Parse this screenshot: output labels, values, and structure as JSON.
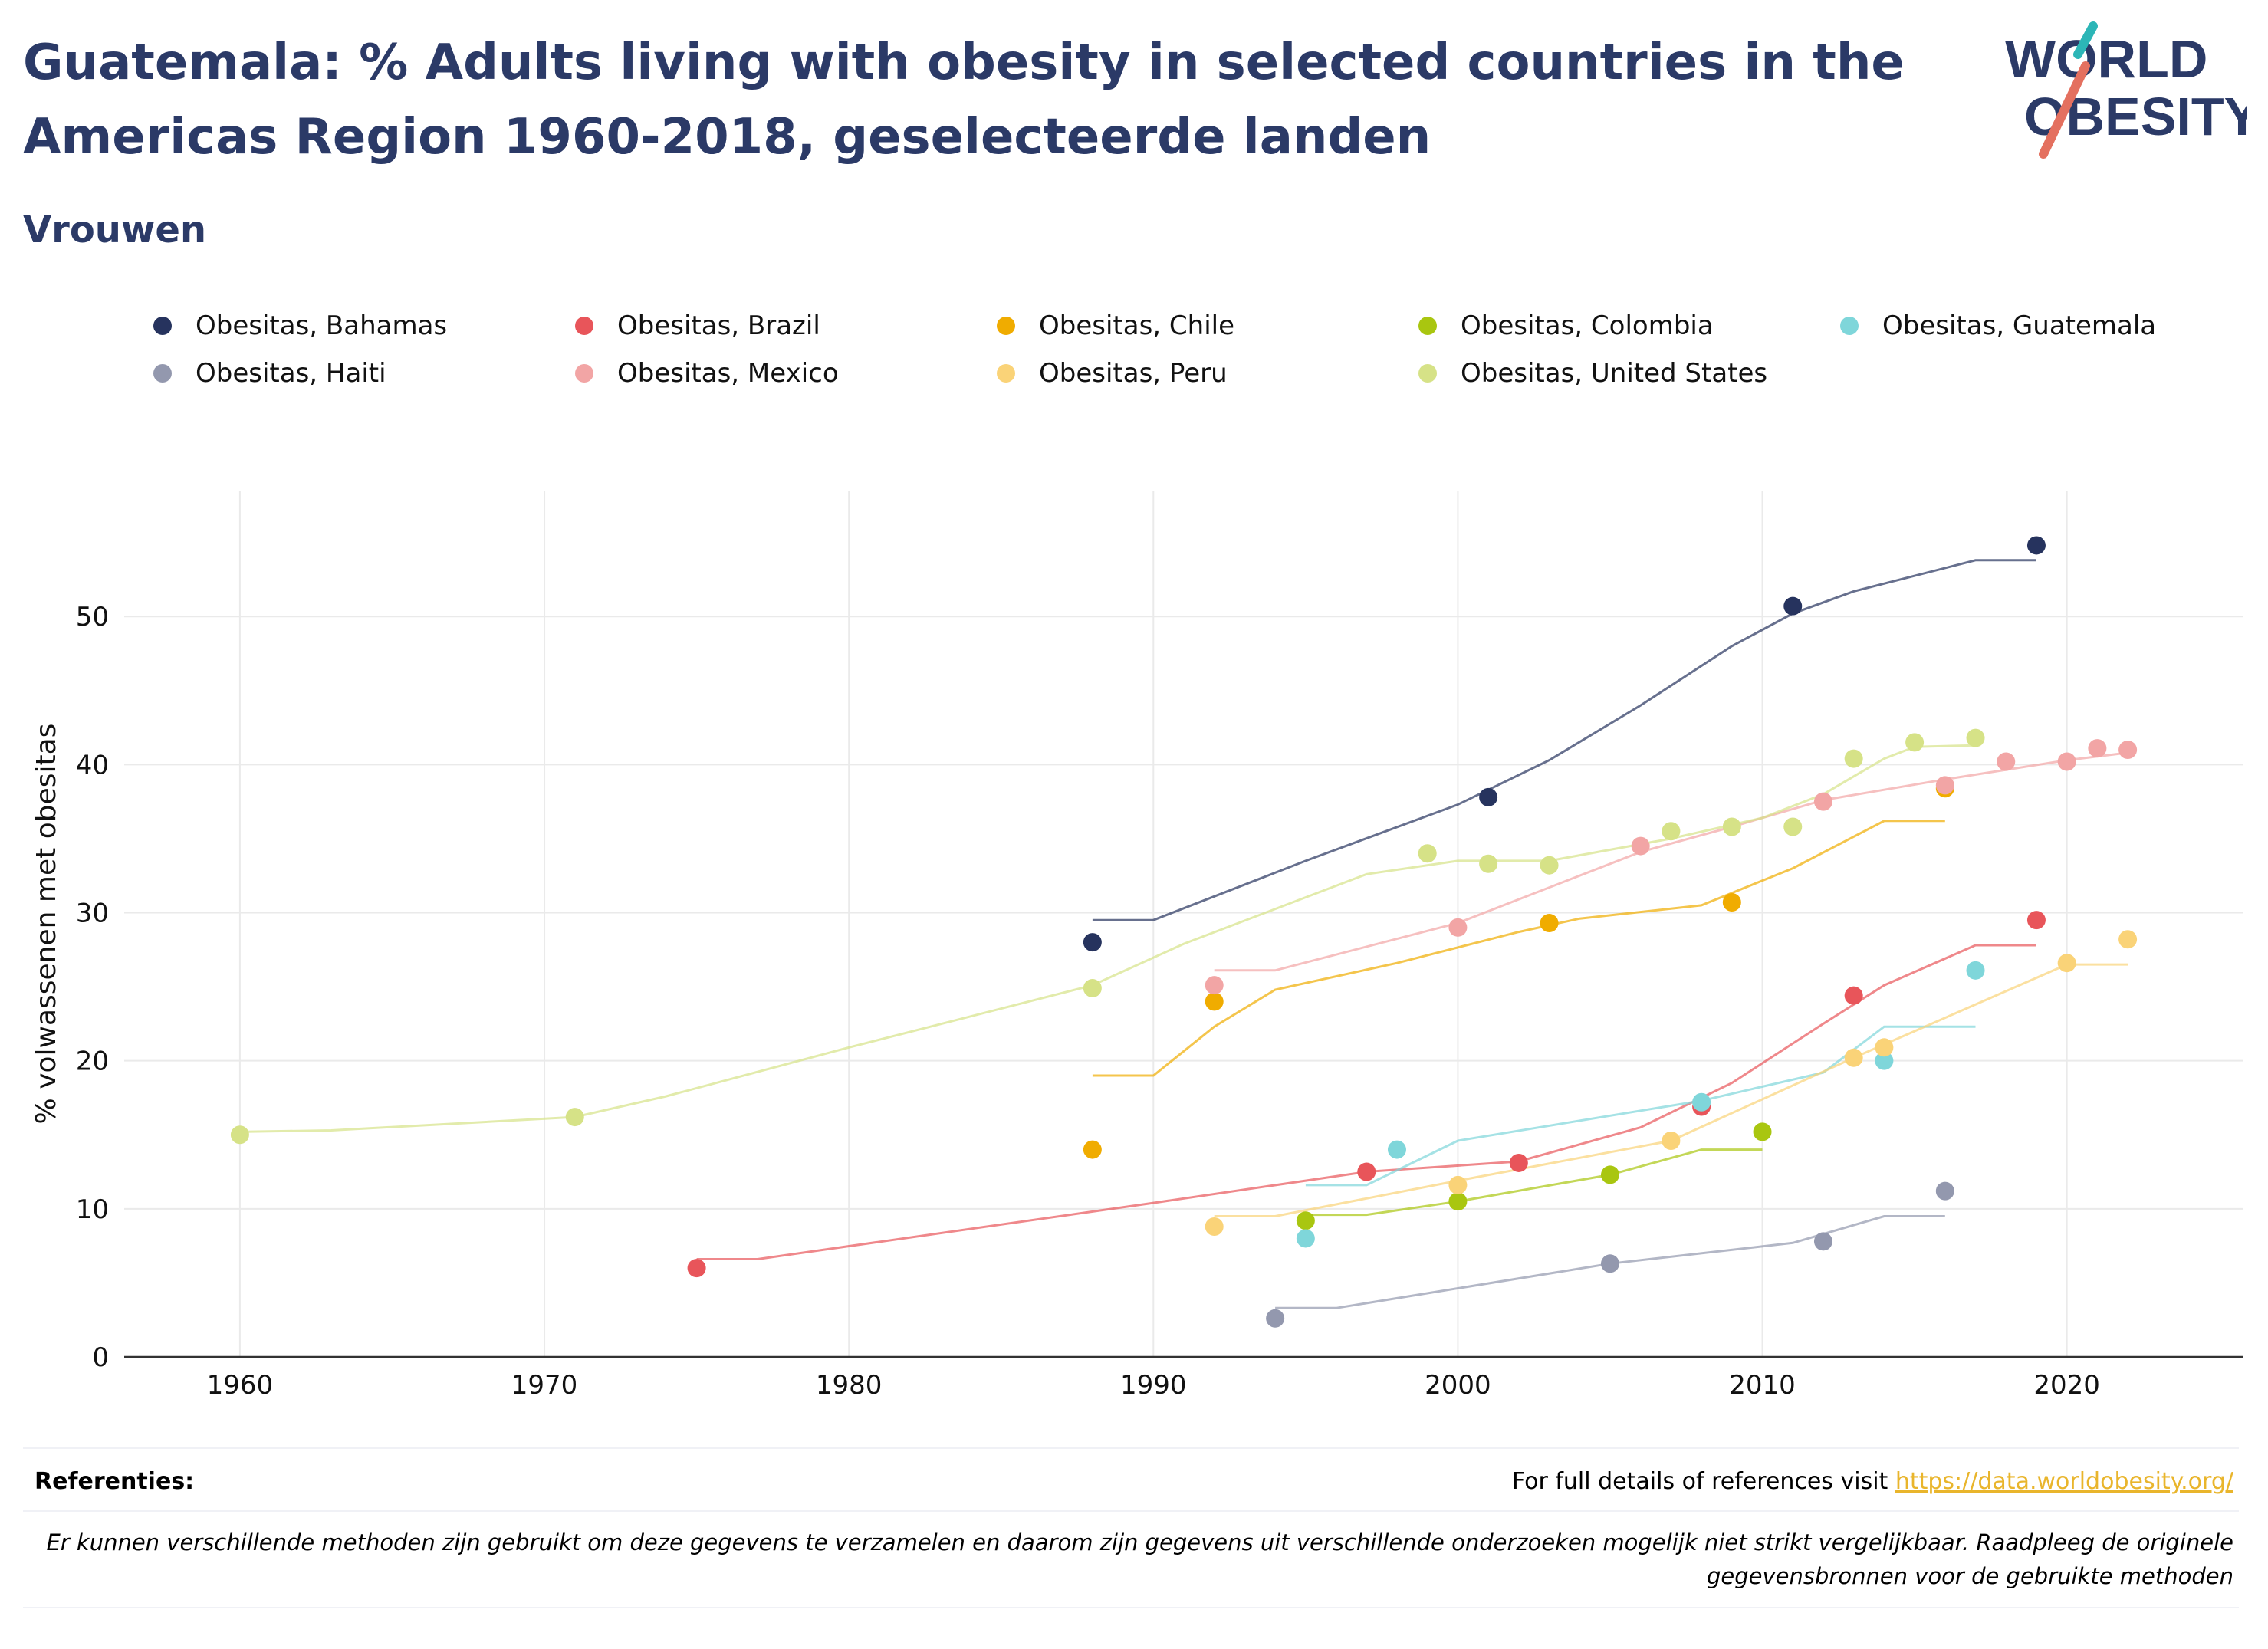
{
  "header": {
    "title": "Guatemala: % Adults living with obesity in selected countries in the Americas Region 1960-2018, geselecteerde landen",
    "subtitle": "Vrouwen"
  },
  "logo": {
    "line1": "WORLD",
    "line2": "OBESITY"
  },
  "footer": {
    "references_label": "Referenties:",
    "references_text": "For full details of references visit",
    "references_link": "https://data.worldobesity.org/",
    "disclaimer": "Er kunnen verschillende methoden zijn gebruikt om deze gegevens te verzamelen en daarom zijn gegevens uit verschillende onderzoeken mogelijk niet strikt vergelijkbaar. Raadpleeg de originele gegevensbronnen voor de gebruikte methoden"
  },
  "chart_data": {
    "type": "scatter",
    "ylabel": "% volwassenen met obesitas",
    "xlabel": "",
    "xlim": [
      1956.2,
      2025.8
    ],
    "ylim": [
      0,
      58.5
    ],
    "x_ticks": [
      1960,
      1970,
      1980,
      1990,
      2000,
      2010,
      2020
    ],
    "y_ticks": [
      0,
      10,
      20,
      30,
      40,
      50
    ],
    "grid": true,
    "legend_position": "top",
    "series": [
      {
        "name": "Obesitas, Bahamas",
        "color": "#26335e",
        "points": [
          [
            1988,
            28.0
          ],
          [
            2001,
            37.8
          ],
          [
            2011,
            50.7
          ],
          [
            2019,
            54.8
          ]
        ],
        "trend": [
          [
            1988,
            29.5
          ],
          [
            1990,
            29.5
          ],
          [
            1995,
            33.5
          ],
          [
            2000,
            37.3
          ],
          [
            2003,
            40.3
          ],
          [
            2006,
            44.0
          ],
          [
            2009,
            48.0
          ],
          [
            2011,
            50.2
          ],
          [
            2013,
            51.7
          ],
          [
            2017,
            53.8
          ],
          [
            2019,
            53.8
          ]
        ]
      },
      {
        "name": "Obesitas, Brazil",
        "color": "#e8555a",
        "points": [
          [
            1975,
            6.0
          ],
          [
            1997,
            12.5
          ],
          [
            2002,
            13.1
          ],
          [
            2008,
            16.9
          ],
          [
            2013,
            24.4
          ],
          [
            2019,
            29.5
          ]
        ],
        "trend": [
          [
            1975,
            6.6
          ],
          [
            1977,
            6.6
          ],
          [
            1990,
            10.4
          ],
          [
            1997,
            12.5
          ],
          [
            2002,
            13.2
          ],
          [
            2006,
            15.5
          ],
          [
            2009,
            18.5
          ],
          [
            2012,
            22.5
          ],
          [
            2014,
            25.1
          ],
          [
            2017,
            27.8
          ],
          [
            2019,
            27.8
          ]
        ]
      },
      {
        "name": "Obesitas, Chile",
        "color": "#f0ac00",
        "points": [
          [
            1988,
            14.0
          ],
          [
            1992,
            24.0
          ],
          [
            2003,
            29.3
          ],
          [
            2009,
            30.7
          ],
          [
            2016,
            38.4
          ]
        ],
        "trend": [
          [
            1988,
            19.0
          ],
          [
            1990,
            19.0
          ],
          [
            1992,
            22.3
          ],
          [
            1994,
            24.8
          ],
          [
            1998,
            26.6
          ],
          [
            2002,
            28.7
          ],
          [
            2004,
            29.6
          ],
          [
            2008,
            30.5
          ],
          [
            2011,
            33.0
          ],
          [
            2014,
            36.2
          ],
          [
            2016,
            36.2
          ]
        ]
      },
      {
        "name": "Obesitas, Colombia",
        "color": "#a9c610",
        "points": [
          [
            1995,
            9.2
          ],
          [
            2000,
            10.5
          ],
          [
            2005,
            12.3
          ],
          [
            2010,
            15.2
          ]
        ],
        "trend": [
          [
            1995,
            9.6
          ],
          [
            1997,
            9.6
          ],
          [
            2000,
            10.5
          ],
          [
            2005,
            12.3
          ],
          [
            2008,
            14.0
          ],
          [
            2010,
            14.0
          ]
        ]
      },
      {
        "name": "Obesitas, Guatemala",
        "color": "#7fd6da",
        "points": [
          [
            1995,
            8.0
          ],
          [
            1998,
            14.0
          ],
          [
            2008,
            17.2
          ],
          [
            2014,
            20.0
          ],
          [
            2017,
            26.1
          ]
        ],
        "trend": [
          [
            1995,
            11.6
          ],
          [
            1997,
            11.6
          ],
          [
            2000,
            14.6
          ],
          [
            2008,
            17.3
          ],
          [
            2012,
            19.2
          ],
          [
            2014,
            22.3
          ],
          [
            2017,
            22.3
          ]
        ]
      },
      {
        "name": "Obesitas, Haiti",
        "color": "#9398ae",
        "points": [
          [
            1994,
            2.6
          ],
          [
            2005,
            6.3
          ],
          [
            2012,
            7.8
          ],
          [
            2016,
            11.2
          ]
        ],
        "trend": [
          [
            1994,
            3.3
          ],
          [
            1996,
            3.3
          ],
          [
            2005,
            6.3
          ],
          [
            2011,
            7.7
          ],
          [
            2014,
            9.5
          ],
          [
            2016,
            9.5
          ]
        ]
      },
      {
        "name": "Obesitas, Mexico",
        "color": "#f2a5a5",
        "points": [
          [
            1992,
            25.1
          ],
          [
            2000,
            29.0
          ],
          [
            2006,
            34.5
          ],
          [
            2012,
            37.5
          ],
          [
            2016,
            38.6
          ],
          [
            2018,
            40.2
          ],
          [
            2020,
            40.2
          ],
          [
            2021,
            41.1
          ],
          [
            2022,
            41.0
          ]
        ],
        "trend": [
          [
            1992,
            26.1
          ],
          [
            1994,
            26.1
          ],
          [
            2000,
            29.3
          ],
          [
            2006,
            34.1
          ],
          [
            2009,
            35.8
          ],
          [
            2012,
            37.6
          ],
          [
            2016,
            39.0
          ],
          [
            2020,
            40.3
          ],
          [
            2022,
            40.8
          ]
        ]
      },
      {
        "name": "Obesitas, Peru",
        "color": "#fad378",
        "points": [
          [
            1992,
            8.8
          ],
          [
            2000,
            11.6
          ],
          [
            2007,
            14.6
          ],
          [
            2013,
            20.2
          ],
          [
            2014,
            20.9
          ],
          [
            2020,
            26.6
          ],
          [
            2022,
            28.2
          ]
        ],
        "trend": [
          [
            1992,
            9.5
          ],
          [
            1994,
            9.5
          ],
          [
            2000,
            11.9
          ],
          [
            2007,
            14.6
          ],
          [
            2013,
            20.2
          ],
          [
            2017,
            23.8
          ],
          [
            2020,
            26.5
          ],
          [
            2022,
            26.5
          ]
        ]
      },
      {
        "name": "Obesitas, United States",
        "color": "#d6e287",
        "points": [
          [
            1960,
            15.0
          ],
          [
            1971,
            16.2
          ],
          [
            1988,
            24.9
          ],
          [
            1999,
            34.0
          ],
          [
            2001,
            33.3
          ],
          [
            2003,
            33.2
          ],
          [
            2007,
            35.5
          ],
          [
            2009,
            35.8
          ],
          [
            2011,
            35.8
          ],
          [
            2013,
            40.4
          ],
          [
            2015,
            41.5
          ],
          [
            2017,
            41.8
          ]
        ],
        "trend": [
          [
            1960,
            15.2
          ],
          [
            1963,
            15.3
          ],
          [
            1971,
            16.2
          ],
          [
            1974,
            17.6
          ],
          [
            1980,
            20.9
          ],
          [
            1988,
            25.1
          ],
          [
            1991,
            27.9
          ],
          [
            1997,
            32.6
          ],
          [
            2000,
            33.5
          ],
          [
            2003,
            33.5
          ],
          [
            2007,
            35.0
          ],
          [
            2010,
            36.4
          ],
          [
            2012,
            38.0
          ],
          [
            2014,
            40.4
          ],
          [
            2015,
            41.2
          ],
          [
            2017,
            41.3
          ]
        ]
      }
    ]
  }
}
